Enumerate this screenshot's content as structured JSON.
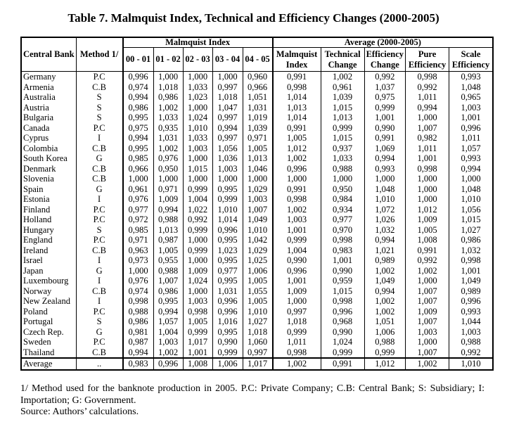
{
  "title": "Table 7. Malmquist Index, Technical and Efficiency Changes (2000-2005)",
  "headers": {
    "central_bank": "Central Bank",
    "method": "Method 1/",
    "malmquist_group": "Malmquist Index",
    "average_group": "Average (2000-2005)",
    "periods": [
      "00 - 01",
      "01 - 02",
      "02 - 03",
      "03 - 04",
      "04 - 05"
    ],
    "averages": [
      [
        "Malmquist",
        "Index"
      ],
      [
        "Technical",
        "Change"
      ],
      [
        "Efficiency",
        "Change"
      ],
      [
        "Pure",
        "Efficiency"
      ],
      [
        "Scale",
        "Efficiency"
      ]
    ]
  },
  "rows": [
    [
      "Germany",
      "P.C",
      "0,996",
      "1,000",
      "1,000",
      "1,000",
      "0,960",
      "0,991",
      "1,002",
      "0,992",
      "0,998",
      "0,993"
    ],
    [
      "Armenia",
      "C.B",
      "0,974",
      "1,018",
      "1,033",
      "0,997",
      "0,966",
      "0,998",
      "0,961",
      "1,037",
      "0,992",
      "1,048"
    ],
    [
      "Australia",
      "S",
      "0,994",
      "0,986",
      "1,023",
      "1,018",
      "1,051",
      "1,014",
      "1,039",
      "0,975",
      "1,011",
      "0,965"
    ],
    [
      "Austria",
      "S",
      "0,986",
      "1,002",
      "1,000",
      "1,047",
      "1,031",
      "1,013",
      "1,015",
      "0,999",
      "0,994",
      "1,003"
    ],
    [
      "Bulgaria",
      "S",
      "0,995",
      "1,033",
      "1,024",
      "0,997",
      "1,019",
      "1,014",
      "1,013",
      "1,001",
      "1,000",
      "1,001"
    ],
    [
      "Canada",
      "P.C",
      "0,975",
      "0,935",
      "1,010",
      "0,994",
      "1,039",
      "0,991",
      "0,999",
      "0,990",
      "1,007",
      "0,996"
    ],
    [
      "Cyprus",
      "I",
      "0,994",
      "1,031",
      "1,033",
      "0,997",
      "0,971",
      "1,005",
      "1,015",
      "0,991",
      "0,982",
      "1,011"
    ],
    [
      "Colombia",
      "C.B",
      "0,995",
      "1,002",
      "1,003",
      "1,056",
      "1,005",
      "1,012",
      "0,937",
      "1,069",
      "1,011",
      "1,057"
    ],
    [
      "South Korea",
      "G",
      "0,985",
      "0,976",
      "1,000",
      "1,036",
      "1,013",
      "1,002",
      "1,033",
      "0,994",
      "1,001",
      "0,993"
    ],
    [
      "Denmark",
      "C.B",
      "0,966",
      "0,950",
      "1,015",
      "1,003",
      "1,046",
      "0,996",
      "0,988",
      "0,993",
      "0,998",
      "0,994"
    ],
    [
      "Slovenia",
      "C.B",
      "1,000",
      "1,000",
      "1,000",
      "1,000",
      "1,000",
      "1,000",
      "1,000",
      "1,000",
      "1,000",
      "1,000"
    ],
    [
      "Spain",
      "G",
      "0,961",
      "0,971",
      "0,999",
      "0,995",
      "1,029",
      "0,991",
      "0,950",
      "1,048",
      "1,000",
      "1,048"
    ],
    [
      "Estonia",
      "I",
      "0,976",
      "1,009",
      "1,004",
      "0,999",
      "1,003",
      "0,998",
      "0,984",
      "1,010",
      "1,000",
      "1,010"
    ],
    [
      "Finland",
      "P.C",
      "0,977",
      "0,994",
      "1,022",
      "1,010",
      "1,007",
      "1,002",
      "0,934",
      "1,072",
      "1,012",
      "1,056"
    ],
    [
      "Holland",
      "P.C",
      "0,972",
      "0,988",
      "0,992",
      "1,014",
      "1,049",
      "1,003",
      "0,977",
      "1,026",
      "1,009",
      "1,015"
    ],
    [
      "Hungary",
      "S",
      "0,985",
      "1,013",
      "0,999",
      "0,996",
      "1,010",
      "1,001",
      "0,970",
      "1,032",
      "1,005",
      "1,027"
    ],
    [
      "England",
      "P.C",
      "0,971",
      "0,987",
      "1,000",
      "0,995",
      "1,042",
      "0,999",
      "0,998",
      "0,994",
      "1,008",
      "0,986"
    ],
    [
      "Ireland",
      "C.B",
      "0,963",
      "1,005",
      "0,999",
      "1,023",
      "1,029",
      "1,004",
      "0,983",
      "1,021",
      "0,991",
      "1,032"
    ],
    [
      "Israel",
      "I",
      "0,973",
      "0,955",
      "1,000",
      "0,995",
      "1,025",
      "0,990",
      "1,001",
      "0,989",
      "0,992",
      "0,998"
    ],
    [
      "Japan",
      "G",
      "1,000",
      "0,988",
      "1,009",
      "0,977",
      "1,006",
      "0,996",
      "0,990",
      "1,002",
      "1,002",
      "1,001"
    ],
    [
      "Luxembourg",
      "I",
      "0,976",
      "1,007",
      "1,024",
      "0,995",
      "1,005",
      "1,001",
      "0,959",
      "1,049",
      "1,000",
      "1,049"
    ],
    [
      "Norway",
      "C.B",
      "0,974",
      "0,986",
      "1,000",
      "1,031",
      "1,055",
      "1,009",
      "1,015",
      "0,994",
      "1,007",
      "0,989"
    ],
    [
      "New Zealand",
      "I",
      "0,998",
      "0,995",
      "1,003",
      "0,996",
      "1,005",
      "1,000",
      "0,998",
      "1,002",
      "1,007",
      "0,996"
    ],
    [
      "Poland",
      "P.C",
      "0,988",
      "0,994",
      "0,998",
      "0,996",
      "1,010",
      "0,997",
      "0,996",
      "1,002",
      "1,009",
      "0,993"
    ],
    [
      "Portugal",
      "S",
      "0,986",
      "1,057",
      "1,005",
      "1,016",
      "1,027",
      "1,018",
      "0,968",
      "1,051",
      "1,007",
      "1,044"
    ],
    [
      "Czech Rep.",
      "G",
      "0,981",
      "1,004",
      "0,999",
      "0,995",
      "1,018",
      "0,999",
      "0,990",
      "1,006",
      "1,003",
      "1,003"
    ],
    [
      "Sweden",
      "P.C",
      "0,987",
      "1,003",
      "1,017",
      "0,990",
      "1,060",
      "1,011",
      "1,024",
      "0,988",
      "1,000",
      "0,988"
    ],
    [
      "Thailand",
      "C.B",
      "0,994",
      "1,002",
      "1,001",
      "0,999",
      "0,997",
      "0,998",
      "0,999",
      "0,999",
      "1,007",
      "0,992"
    ]
  ],
  "average_row": [
    "Average",
    "..",
    "0,983",
    "0,996",
    "1,008",
    "1,006",
    "1,017",
    "1,002",
    "0,991",
    "1,012",
    "1,002",
    "1,010"
  ],
  "footnotes": [
    "1/ Method used for the banknote production in 2005. P.C: Private Company; C.B: Central Bank; S: Subsidiary; I: Importation; G: Government.",
    "Source: Authors’ calculations."
  ]
}
